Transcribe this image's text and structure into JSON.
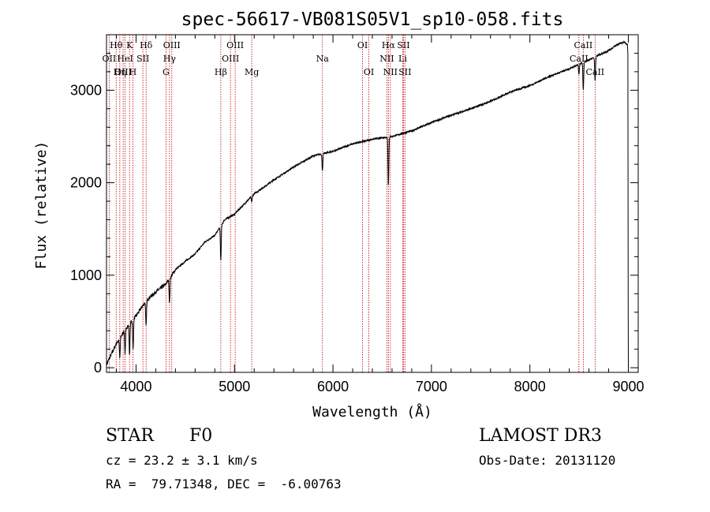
{
  "chart_data": {
    "type": "line",
    "title": "spec-56617-VB081S05V1_sp10-058.fits",
    "xlabel": "Wavelength (Å)",
    "ylabel": "Flux (relative)",
    "xlim": [
      3700,
      9100
    ],
    "ylim": [
      -50,
      3600
    ],
    "xticks": [
      4000,
      5000,
      6000,
      7000,
      8000,
      9000
    ],
    "xtick_labels": [
      "4000",
      "5000",
      "6000",
      "7000",
      "8000",
      "9000"
    ],
    "yticks": [
      0,
      1000,
      2000,
      3000
    ],
    "ytick_labels": [
      "0",
      "1000",
      "2000",
      "3000"
    ],
    "grid": false,
    "spectrum_anchors": {
      "x": [
        3700,
        3720,
        3800,
        3900,
        4000,
        4100,
        4200,
        4300,
        4400,
        4500,
        4600,
        4700,
        4800,
        4900,
        5000,
        5200,
        5400,
        5600,
        5800,
        6000,
        6200,
        6400,
        6600,
        6800,
        7000,
        7200,
        7400,
        7600,
        7800,
        8000,
        8200,
        8400,
        8600,
        8800,
        8900,
        8960,
        9000
      ],
      "y": [
        30,
        80,
        260,
        430,
        560,
        720,
        820,
        900,
        1060,
        1150,
        1230,
        1360,
        1430,
        1600,
        1660,
        1880,
        2030,
        2170,
        2290,
        2340,
        2420,
        2470,
        2500,
        2560,
        2650,
        2730,
        2800,
        2880,
        2980,
        3050,
        3150,
        3230,
        3330,
        3430,
        3500,
        3520,
        3480
      ]
    },
    "absorption_features": {
      "x": [
        3835,
        3889,
        3934,
        3970,
        4102,
        4340,
        4861,
        5175,
        5893,
        6563,
        8498,
        8542,
        8662
      ],
      "depth": [
        220,
        260,
        330,
        330,
        280,
        260,
        380,
        60,
        180,
        520,
        110,
        300,
        260
      ]
    },
    "line_markers": [
      {
        "label": "Hθ",
        "x": 3798,
        "row": 0
      },
      {
        "label": "OII",
        "x": 3727,
        "row": 1
      },
      {
        "label": "OIII",
        "x": 3869,
        "row": 2
      },
      {
        "label": "Hη",
        "x": 3835,
        "row": 2
      },
      {
        "label": "K",
        "x": 3934,
        "row": 0
      },
      {
        "label": "HeI",
        "x": 3889,
        "row": 1
      },
      {
        "label": "H",
        "x": 3968,
        "row": 2
      },
      {
        "label": "Hδ",
        "x": 4102,
        "row": 0
      },
      {
        "label": "SII",
        "x": 4070,
        "row": 1
      },
      {
        "label": "OIII",
        "x": 4363,
        "row": 0
      },
      {
        "label": "Hγ",
        "x": 4340,
        "row": 1
      },
      {
        "label": "G",
        "x": 4304,
        "row": 2
      },
      {
        "label": "Hβ",
        "x": 4861,
        "row": 2
      },
      {
        "label": "OIII",
        "x": 5007,
        "row": 0
      },
      {
        "label": "OIII",
        "x": 4959,
        "row": 1
      },
      {
        "label": "Mg",
        "x": 5175,
        "row": 2
      },
      {
        "label": "Na",
        "x": 5893,
        "row": 1
      },
      {
        "label": "OI",
        "x": 6300,
        "row": 0
      },
      {
        "label": "OI",
        "x": 6364,
        "row": 2
      },
      {
        "label": "Hα",
        "x": 6563,
        "row": 0
      },
      {
        "label": "NII",
        "x": 6548,
        "row": 1
      },
      {
        "label": "NII",
        "x": 6583,
        "row": 2
      },
      {
        "label": "SII",
        "x": 6716,
        "row": 0
      },
      {
        "label": "Li",
        "x": 6708,
        "row": 1
      },
      {
        "label": "SII",
        "x": 6731,
        "row": 2
      },
      {
        "label": "CaII",
        "x": 8542,
        "row": 0
      },
      {
        "label": "CaII",
        "x": 8498,
        "row": 1
      },
      {
        "label": "CaII",
        "x": 8662,
        "row": 2
      }
    ]
  },
  "info": {
    "class": "STAR",
    "subclass": "F0",
    "survey": "LAMOST DR3",
    "redshift": "cz = 23.2 ± 3.1 km/s",
    "obs_date": "Obs-Date: 20131120",
    "coords": "RA =  79.71348, DEC =  -6.00763"
  }
}
